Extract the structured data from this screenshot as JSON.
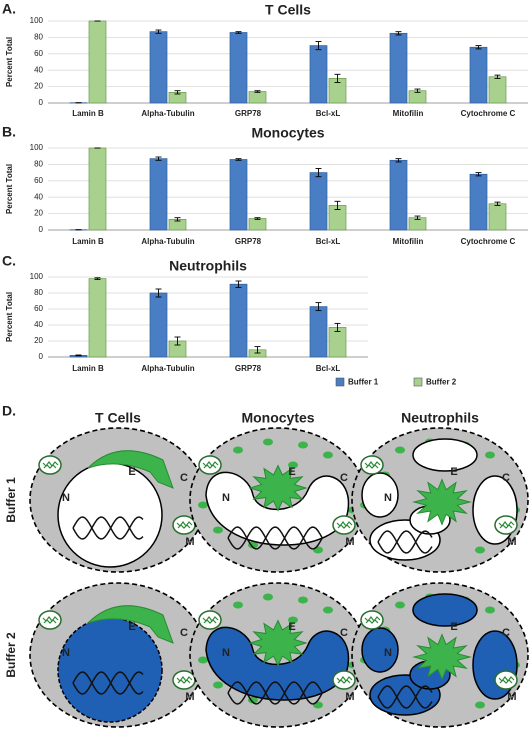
{
  "chart_data": [
    {
      "type": "bar",
      "label": "A.",
      "title": "T Cells",
      "y_label": "Percent Total",
      "categories": [
        "Lamin B",
        "Alpha-Tubulin",
        "GRP78",
        "Bcl-xL",
        "Mitofilin",
        "Cytochrome C"
      ],
      "series": [
        {
          "color": "#4a7ec4",
          "values": [
            0.3,
            87,
            86,
            70,
            85,
            68
          ],
          "errors": [
            0,
            2,
            1,
            5,
            2,
            2
          ]
        },
        {
          "color": "#a9d18e",
          "values": [
            100,
            13,
            14,
            30,
            15,
            32
          ],
          "errors": [
            0,
            2,
            1,
            5,
            2,
            2
          ]
        }
      ],
      "ylim": [
        0,
        100
      ],
      "yticks": [
        0,
        20,
        40,
        60,
        80,
        100
      ],
      "grid": true
    },
    {
      "type": "bar",
      "label": "B.",
      "title": "Monocytes",
      "y_label": "Percent Total",
      "categories": [
        "Lamin B",
        "Alpha-Tubulin",
        "GRP78",
        "Bcl-xL",
        "Mitofilin",
        "Cytochrome C"
      ],
      "series": [
        {
          "color": "#4a7ec4",
          "values": [
            0.3,
            87,
            86,
            70,
            85,
            68
          ],
          "errors": [
            0,
            2,
            1,
            5,
            2,
            2
          ]
        },
        {
          "color": "#a9d18e",
          "values": [
            100,
            13,
            14,
            30,
            15,
            32
          ],
          "errors": [
            0,
            2,
            1,
            5,
            2,
            2
          ]
        }
      ],
      "ylim": [
        0,
        100
      ],
      "yticks": [
        0,
        20,
        40,
        60,
        80,
        100
      ],
      "grid": true
    },
    {
      "type": "bar",
      "label": "C.",
      "title": "Neutrophils",
      "y_label": "Percent Total",
      "categories": [
        "Lamin B",
        "Alpha-Tubulin",
        "GRP78",
        "Bcl-xL"
      ],
      "series": [
        {
          "name": "Buffer 1",
          "color": "#4a7ec4",
          "values": [
            2,
            80,
            91,
            63
          ],
          "errors": [
            0.5,
            5,
            4,
            5
          ]
        },
        {
          "name": "Buffer 2",
          "color": "#a9d18e",
          "values": [
            98,
            20,
            9,
            37
          ],
          "errors": [
            1,
            5,
            4,
            5
          ]
        }
      ],
      "ylim": [
        0,
        100
      ],
      "yticks": [
        0,
        20,
        40,
        60,
        80,
        100
      ],
      "grid": true
    }
  ],
  "diagram": {
    "label": "D.",
    "columns": [
      "T Cells",
      "Monocytes",
      "Neutrophils"
    ],
    "rows": [
      "Buffer 1",
      "Buffer 2"
    ],
    "cell_labels": [
      "N",
      "E",
      "C",
      "M"
    ]
  }
}
